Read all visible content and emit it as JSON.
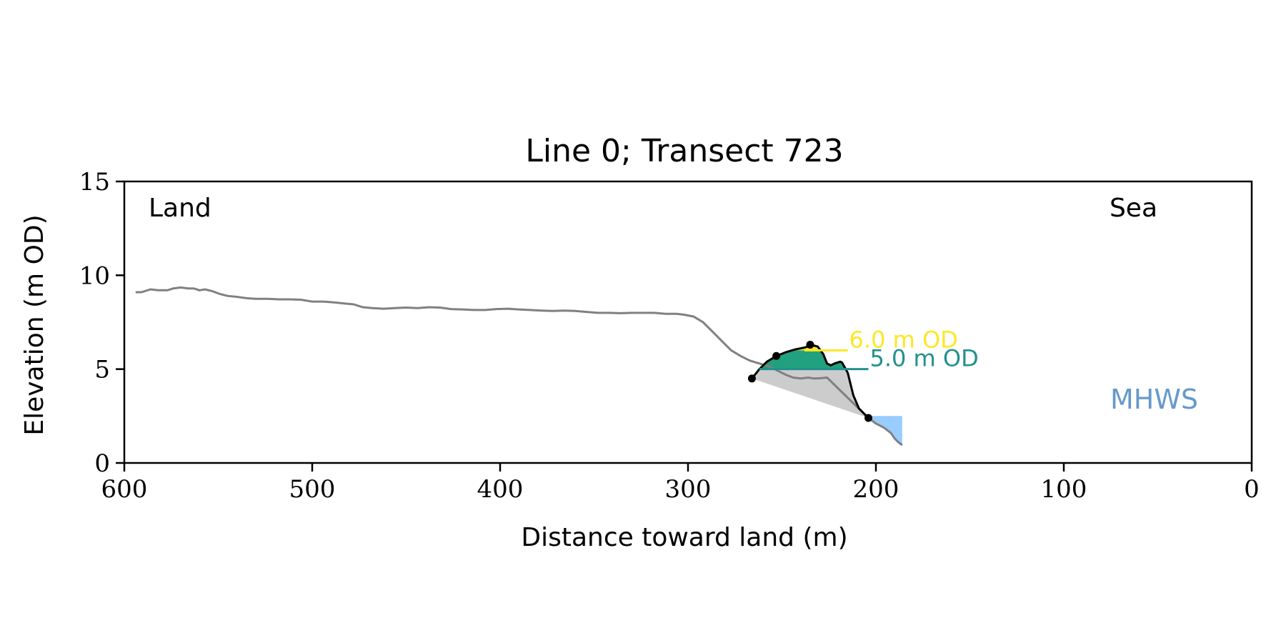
{
  "chart_data": {
    "type": "line",
    "title": "Line 0; Transect 723",
    "xlabel": "Distance toward land (m)",
    "ylabel": "Elevation (m OD)",
    "xlim": [
      600,
      0
    ],
    "ylim": [
      0,
      15
    ],
    "x_ticks": [
      600,
      500,
      400,
      300,
      200,
      100,
      0
    ],
    "y_ticks": [
      0,
      5,
      10,
      15
    ],
    "grid": false,
    "corner_labels": {
      "left": "Land",
      "right": "Sea"
    },
    "mhws_label": "MHWS",
    "colors": {
      "profile": "#808080",
      "dune": "#000000",
      "shading_base": "#cccccc",
      "band_5m": "#21a17f",
      "band_6m": "#fde725",
      "level_5m": "#21918c",
      "level_6m": "#fde725",
      "mhws": "#6699cc",
      "mhws_fill": "#99ccff"
    },
    "profile": [
      [
        594,
        9.1
      ],
      [
        591,
        9.1
      ],
      [
        586,
        9.25
      ],
      [
        582,
        9.2
      ],
      [
        577,
        9.2
      ],
      [
        574,
        9.3
      ],
      [
        570,
        9.35
      ],
      [
        566,
        9.3
      ],
      [
        563,
        9.3
      ],
      [
        560,
        9.2
      ],
      [
        557,
        9.25
      ],
      [
        553,
        9.15
      ],
      [
        549,
        9.0
      ],
      [
        545,
        8.9
      ],
      [
        540,
        8.85
      ],
      [
        535,
        8.78
      ],
      [
        530,
        8.75
      ],
      [
        524,
        8.75
      ],
      [
        518,
        8.72
      ],
      [
        512,
        8.72
      ],
      [
        506,
        8.7
      ],
      [
        500,
        8.6
      ],
      [
        494,
        8.6
      ],
      [
        488,
        8.55
      ],
      [
        483,
        8.5
      ],
      [
        478,
        8.45
      ],
      [
        473,
        8.3
      ],
      [
        468,
        8.25
      ],
      [
        462,
        8.22
      ],
      [
        456,
        8.25
      ],
      [
        450,
        8.28
      ],
      [
        444,
        8.25
      ],
      [
        438,
        8.3
      ],
      [
        432,
        8.28
      ],
      [
        426,
        8.2
      ],
      [
        420,
        8.18
      ],
      [
        414,
        8.15
      ],
      [
        408,
        8.15
      ],
      [
        402,
        8.2
      ],
      [
        396,
        8.22
      ],
      [
        390,
        8.18
      ],
      [
        384,
        8.15
      ],
      [
        378,
        8.12
      ],
      [
        372,
        8.1
      ],
      [
        366,
        8.12
      ],
      [
        360,
        8.1
      ],
      [
        354,
        8.05
      ],
      [
        348,
        8.0
      ],
      [
        342,
        8.0
      ],
      [
        336,
        7.98
      ],
      [
        330,
        8.0
      ],
      [
        324,
        8.0
      ],
      [
        318,
        8.0
      ],
      [
        312,
        7.95
      ],
      [
        306,
        7.95
      ],
      [
        302,
        7.9
      ],
      [
        297,
        7.8
      ],
      [
        292,
        7.5
      ],
      [
        287,
        7.0
      ],
      [
        282,
        6.5
      ],
      [
        277,
        6.0
      ],
      [
        272,
        5.7
      ],
      [
        267,
        5.45
      ],
      [
        262,
        5.3
      ],
      [
        257,
        5.15
      ],
      [
        252,
        4.9
      ],
      [
        248,
        4.7
      ],
      [
        244,
        4.55
      ],
      [
        240,
        4.5
      ],
      [
        236,
        4.55
      ],
      [
        233,
        4.5
      ],
      [
        229,
        4.52
      ],
      [
        226,
        4.55
      ],
      [
        204,
        2.4
      ],
      [
        200,
        2.1
      ],
      [
        196,
        1.9
      ],
      [
        192,
        1.6
      ],
      [
        190,
        1.3
      ],
      [
        188,
        1.1
      ],
      [
        186,
        0.95
      ]
    ],
    "dune_profile": [
      [
        266,
        4.5
      ],
      [
        262,
        5.0
      ],
      [
        258,
        5.4
      ],
      [
        253,
        5.7
      ],
      [
        248,
        5.9
      ],
      [
        243,
        6.05
      ],
      [
        238,
        6.15
      ],
      [
        234,
        6.28
      ],
      [
        231,
        6.2
      ],
      [
        228,
        5.8
      ],
      [
        226,
        5.3
      ],
      [
        224,
        5.2
      ],
      [
        222,
        5.3
      ],
      [
        219,
        5.4
      ],
      [
        218,
        5.35
      ],
      [
        215,
        4.8
      ],
      [
        212,
        3.6
      ],
      [
        209,
        2.9
      ],
      [
        206,
        2.6
      ],
      [
        204,
        2.4
      ]
    ],
    "dune_points": [
      [
        266,
        4.5
      ],
      [
        253,
        5.7
      ],
      [
        235,
        6.3
      ],
      [
        204,
        2.4
      ]
    ],
    "level_lines": [
      {
        "label": "6.0 m OD",
        "elevation": 6.0,
        "x_from": 238,
        "x_to": 215
      },
      {
        "label": "5.0 m OD",
        "elevation": 5.0,
        "x_from": 262,
        "x_to": 204
      }
    ],
    "mhws_elevation": 2.5,
    "mhws_x_range": [
      204,
      192
    ]
  }
}
